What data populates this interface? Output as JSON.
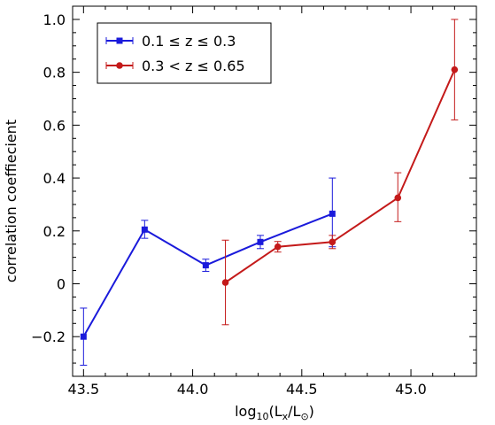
{
  "chart_data": {
    "type": "line",
    "xlabel": "log10(Lx/L⊙)",
    "xlabel_parts": {
      "base": "log",
      "base_sub": "10",
      "open": "(L",
      "l_sub": "x",
      "mid": "/L",
      "sun_sub": "⊙",
      "close": ")"
    },
    "ylabel": "correlation coeffiecient",
    "xlim": [
      43.45,
      45.3
    ],
    "ylim": [
      -0.35,
      1.05
    ],
    "xticks": [
      43.5,
      44.0,
      44.5,
      45.0
    ],
    "xtick_labels": [
      "43.5",
      "44.0",
      "44.5",
      "45.0"
    ],
    "yticks": [
      -0.2,
      0,
      0.2,
      0.4,
      0.6,
      0.8,
      1.0
    ],
    "ytick_labels": [
      "−0.2",
      "0",
      "0.2",
      "0.4",
      "0.6",
      "0.8",
      "1.0"
    ],
    "grid": false,
    "legend": "top-left",
    "series": [
      {
        "name": "0.1 ≤  z ≤  0.3",
        "color": "#1a1adb",
        "marker": "square",
        "x": [
          43.5,
          43.78,
          44.06,
          44.31,
          44.64
        ],
        "y": [
          -0.2,
          0.205,
          0.07,
          0.158,
          0.265
        ],
        "err_low": [
          0.108,
          0.033,
          0.023,
          0.025,
          0.125
        ],
        "err_high": [
          0.108,
          0.035,
          0.023,
          0.025,
          0.135
        ]
      },
      {
        "name": "0.3 < z ≤  0.65",
        "color": "#c41a1a",
        "marker": "circle",
        "x": [
          44.15,
          44.39,
          44.64,
          44.94,
          45.2
        ],
        "y": [
          0.005,
          0.14,
          0.158,
          0.325,
          0.81
        ],
        "err_low": [
          0.16,
          0.02,
          0.025,
          0.09,
          0.19
        ],
        "err_high": [
          0.16,
          0.02,
          0.025,
          0.095,
          0.19
        ]
      }
    ]
  }
}
